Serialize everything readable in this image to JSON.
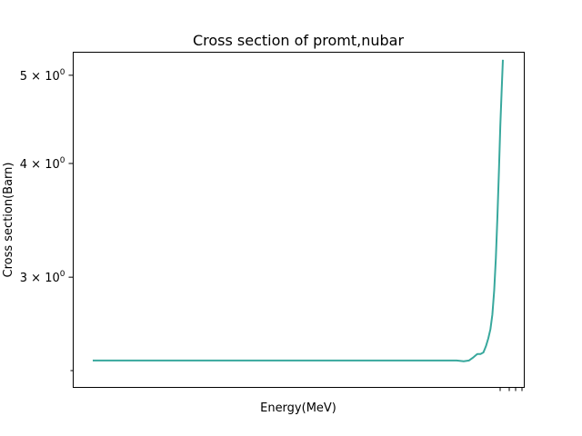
{
  "chart_data": {
    "type": "line",
    "title": "Cross section of promt,nubar",
    "xlabel": "Energy(MeV)",
    "ylabel": "Cross section(Barn)",
    "xscale": "log",
    "yscale": "log",
    "grid": false,
    "legend": "none",
    "ylim": [
      2.27,
      5.3
    ],
    "y_ticks": [
      {
        "value": 3,
        "mantissa": "3",
        "exponent": "0"
      },
      {
        "value": 4,
        "mantissa": "4",
        "exponent": "0"
      },
      {
        "value": 5,
        "mantissa": "5",
        "exponent": "0"
      }
    ],
    "series": [
      {
        "color": "#38a89d",
        "x": [
          1e-06,
          0.0001,
          0.01,
          0.1,
          0.2,
          0.25,
          0.3,
          0.35,
          0.4,
          0.5,
          0.6,
          0.8,
          1,
          1.2,
          1.5,
          2,
          3,
          4,
          5,
          6,
          7,
          8,
          9,
          10,
          11,
          12,
          13,
          14,
          15,
          16,
          17,
          18,
          19,
          20
        ],
        "y": [
          2.43,
          2.43,
          2.43,
          2.43,
          2.43,
          2.43,
          2.43,
          2.43,
          2.43,
          2.43,
          2.43,
          2.43,
          2.43,
          2.43,
          2.43,
          2.43,
          2.43,
          2.425,
          2.43,
          2.45,
          2.47,
          2.47,
          2.48,
          2.52,
          2.57,
          2.63,
          2.73,
          2.9,
          3.15,
          3.5,
          3.92,
          4.4,
          4.8,
          5.2
        ]
      }
    ]
  }
}
